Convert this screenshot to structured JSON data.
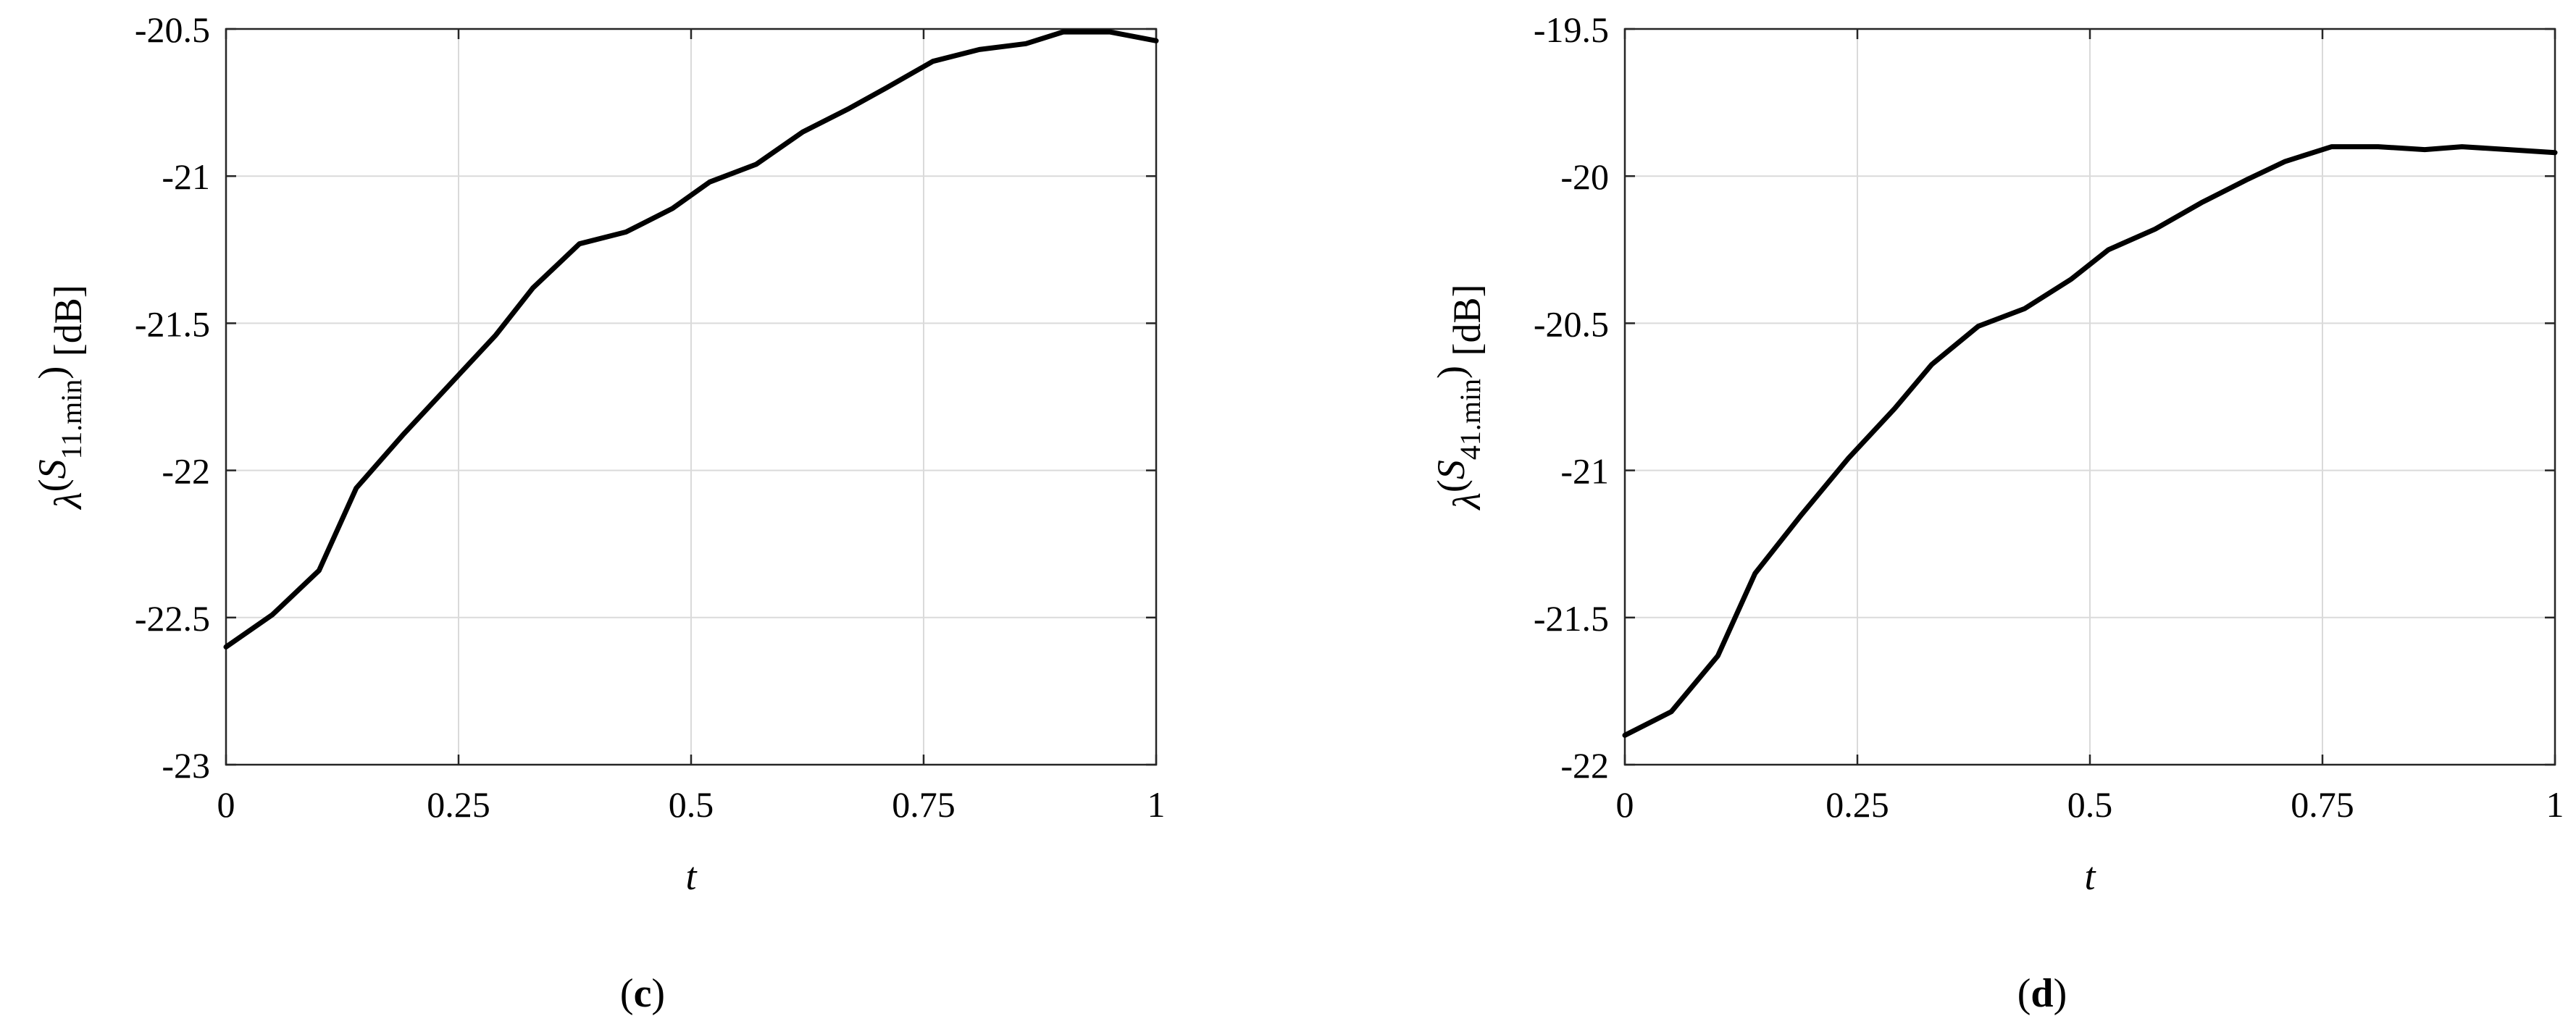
{
  "chart_data": [
    {
      "type": "line",
      "caption": "c",
      "xlabel": "t",
      "ylabel": {
        "symbol": "λ",
        "var": "S",
        "subscript": "11.min",
        "unit": "[dB]"
      },
      "xlim": [
        0,
        1
      ],
      "ylim": [
        -23,
        -20.5
      ],
      "xticks": [
        0,
        0.25,
        0.5,
        0.75,
        1
      ],
      "xtick_labels": [
        "0",
        "0.25",
        "0.5",
        "0.75",
        "1"
      ],
      "yticks": [
        -23,
        -22.5,
        -22,
        -21.5,
        -21,
        -20.5
      ],
      "ytick_labels": [
        "-23",
        "-22.5",
        "-22",
        "-21.5",
        "-21",
        "-20.5"
      ],
      "grid": true,
      "line_color": "#000000",
      "x": [
        0,
        0.05,
        0.1,
        0.14,
        0.19,
        0.24,
        0.29,
        0.33,
        0.38,
        0.43,
        0.48,
        0.52,
        0.57,
        0.62,
        0.67,
        0.71,
        0.76,
        0.81,
        0.86,
        0.9,
        0.95,
        1
      ],
      "y": [
        -22.6,
        -22.49,
        -22.34,
        -22.06,
        -21.88,
        -21.71,
        -21.54,
        -21.38,
        -21.23,
        -21.19,
        -21.11,
        -21.02,
        -20.96,
        -20.85,
        -20.77,
        -20.7,
        -20.61,
        -20.57,
        -20.55,
        -20.51,
        -20.51,
        -20.54
      ]
    },
    {
      "type": "line",
      "caption": "d",
      "xlabel": "t",
      "ylabel": {
        "symbol": "λ",
        "var": "S",
        "subscript": "41.min",
        "unit": "[dB]"
      },
      "xlim": [
        0,
        1
      ],
      "ylim": [
        -22,
        -19.5
      ],
      "xticks": [
        0,
        0.25,
        0.5,
        0.75,
        1
      ],
      "xtick_labels": [
        "0",
        "0.25",
        "0.5",
        "0.75",
        "1"
      ],
      "yticks": [
        -22,
        -21.5,
        -21,
        -20.5,
        -20,
        -19.5
      ],
      "ytick_labels": [
        "-22",
        "-21.5",
        "-21",
        "-20.5",
        "-20",
        "-19.5"
      ],
      "grid": true,
      "line_color": "#000000",
      "x": [
        0,
        0.05,
        0.1,
        0.14,
        0.19,
        0.24,
        0.29,
        0.33,
        0.38,
        0.43,
        0.48,
        0.52,
        0.57,
        0.62,
        0.67,
        0.71,
        0.76,
        0.81,
        0.86,
        0.9,
        0.95,
        1
      ],
      "y": [
        -21.9,
        -21.82,
        -21.63,
        -21.35,
        -21.15,
        -20.96,
        -20.79,
        -20.64,
        -20.51,
        -20.45,
        -20.35,
        -20.25,
        -20.18,
        -20.09,
        -20.01,
        -19.95,
        -19.9,
        -19.9,
        -19.91,
        -19.9,
        -19.91,
        -19.92
      ]
    }
  ]
}
